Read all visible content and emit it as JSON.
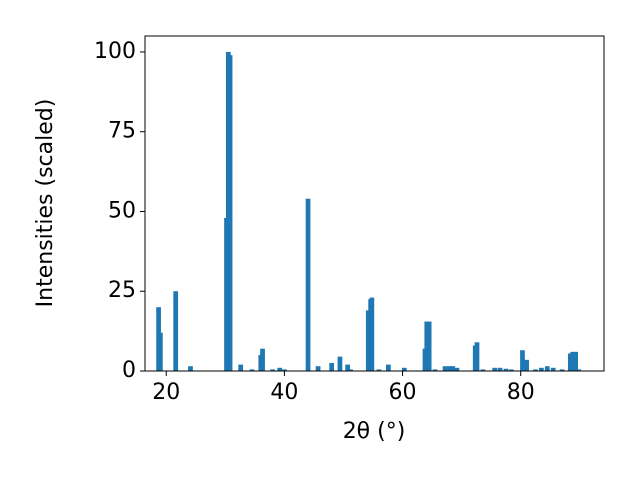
{
  "chart_data": {
    "type": "bar",
    "xlabel": "2θ (°)",
    "ylabel": "Intensities (scaled)",
    "color": "#1f77b4",
    "x": [
      18.7,
      19.0,
      21.6,
      24.1,
      30.2,
      30.5,
      30.8,
      32.6,
      34.5,
      36.0,
      36.3,
      38.0,
      39.2,
      40.0,
      44.0,
      45.7,
      48.0,
      49.4,
      50.7,
      51.2,
      54.2,
      54.6,
      54.8,
      56.0,
      57.6,
      60.3,
      63.8,
      64.1,
      64.5,
      65.5,
      67.2,
      68.0,
      68.5,
      69.2,
      72.3,
      72.6,
      73.6,
      75.6,
      76.5,
      77.5,
      78.4,
      80.3,
      81.0,
      82.5,
      83.5,
      84.5,
      85.5,
      87.0,
      88.4,
      88.8,
      89.3,
      89.8
    ],
    "values": [
      20,
      12,
      25,
      1.5,
      48,
      100,
      99,
      2,
      0.5,
      5,
      7,
      0.5,
      1,
      0.5,
      54,
      1.5,
      2.5,
      4.5,
      2,
      0.5,
      19,
      22.5,
      23,
      0.5,
      2,
      1,
      7,
      15.5,
      15.5,
      0.5,
      1.5,
      1.5,
      1.5,
      1,
      8,
      9,
      0.5,
      1,
      1,
      0.7,
      0.5,
      6.5,
      3.5,
      0.5,
      1,
      1.5,
      1,
      0.5,
      5.5,
      6,
      6,
      0.5
    ],
    "xlim": [
      16.4,
      94.1
    ],
    "xticks": [
      20,
      40,
      60,
      80
    ],
    "ylim": [
      0,
      105
    ],
    "yticks": [
      0,
      25,
      50,
      75,
      100
    ]
  }
}
